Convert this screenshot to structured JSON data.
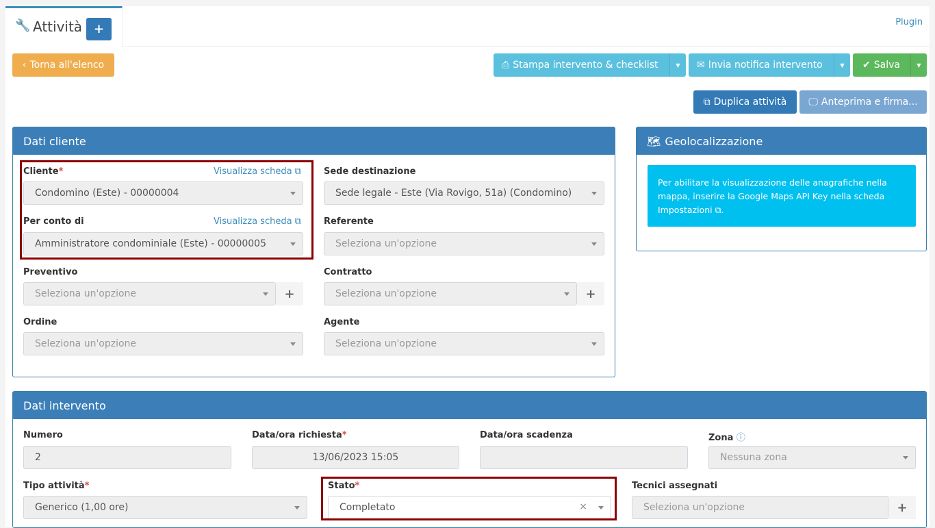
{
  "tab": {
    "title": "Attività",
    "add": "+",
    "plugin": "Plugin"
  },
  "toolbar": {
    "back": "Torna all'elenco",
    "print": "Stampa intervento & checklist",
    "notify": "Invia notifica intervento",
    "save": "Salva",
    "duplicate": "Duplica attività",
    "preview": "Anteprima e firma..."
  },
  "cliente": {
    "title": "Dati cliente",
    "view": "Visualizza scheda",
    "cliente_label": "Cliente",
    "cliente_value": "Condomino (Este) - 00000004",
    "conto_label": "Per conto di",
    "conto_value": "Amministratore condominiale (Este) - 00000005",
    "sede_label": "Sede destinazione",
    "sede_value": "Sede legale - Este (Via Rovigo, 51a) (Condomino)",
    "referente_label": "Referente",
    "preventivo_label": "Preventivo",
    "contratto_label": "Contratto",
    "ordine_label": "Ordine",
    "agente_label": "Agente",
    "placeholder": "Seleziona un'opzione"
  },
  "geo": {
    "title": "Geolocalizzazione",
    "message": "Per abilitare la visualizzazione delle anagrafiche nella mappa, inserire la Google Maps API Key nella scheda Impostazioni"
  },
  "intervento": {
    "title": "Dati intervento",
    "numero_label": "Numero",
    "numero_value": "2",
    "richiesta_label": "Data/ora richiesta",
    "richiesta_value": "13/06/2023 15:05",
    "scadenza_label": "Data/ora scadenza",
    "zona_label": "Zona",
    "zona_value": "Nessuna zona",
    "tipo_label": "Tipo attività",
    "tipo_value": "Generico (1,00 ore)",
    "stato_label": "Stato",
    "stato_value": "Completato",
    "tecnici_label": "Tecnici assegnati",
    "tecnici_placeholder": "Seleziona un'opzione"
  },
  "colors": {
    "primary": "#3c8dbc",
    "warning": "#f0ad4e",
    "info": "#5bc0de",
    "success": "#5cb85c",
    "highlight": "#8b0000",
    "callout": "#00c0ef"
  }
}
